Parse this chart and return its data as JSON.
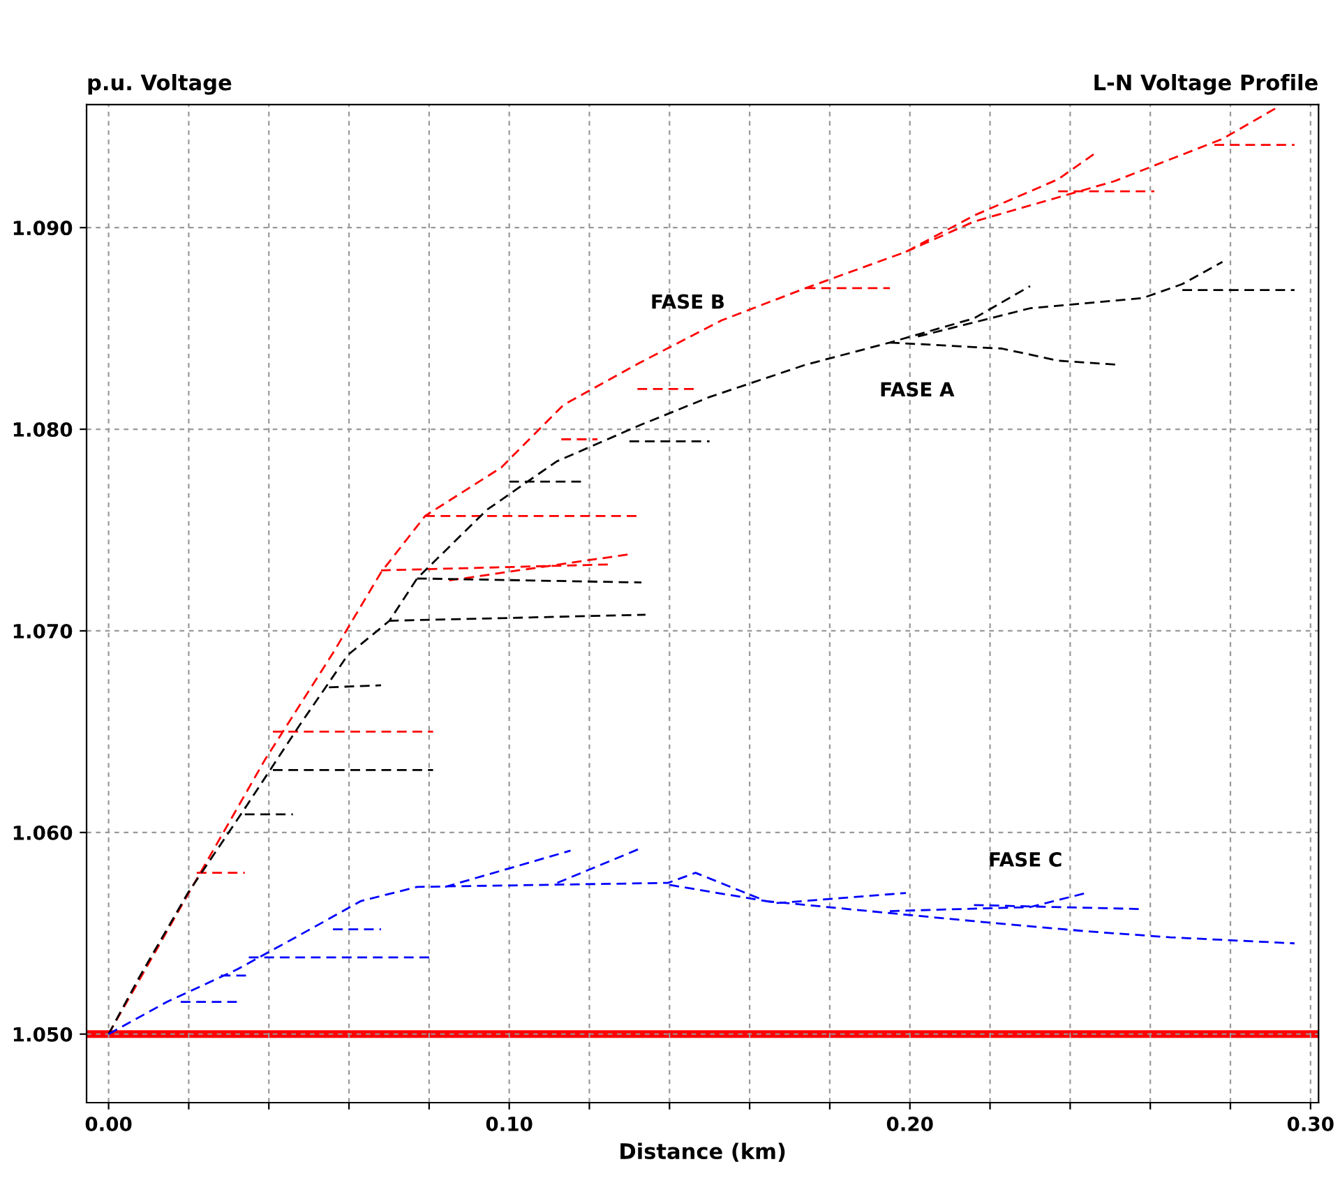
{
  "chart_data": {
    "type": "line",
    "title": "L-N Voltage Profile",
    "xlabel": "Distance (km)",
    "ylabel": "p.u. Voltage",
    "xlim": [
      -0.0055,
      0.302
    ],
    "ylim": [
      1.0466,
      1.0961
    ],
    "xticks": [
      {
        "value": 0,
        "label": "0.00"
      },
      {
        "value": 0.02,
        "label": null
      },
      {
        "value": 0.04,
        "label": null
      },
      {
        "value": 0.06,
        "label": null
      },
      {
        "value": 0.08,
        "label": null
      },
      {
        "value": 0.1,
        "label": "0.10"
      },
      {
        "value": 0.12,
        "label": null
      },
      {
        "value": 0.14,
        "label": null
      },
      {
        "value": 0.16,
        "label": null
      },
      {
        "value": 0.18,
        "label": null
      },
      {
        "value": 0.2,
        "label": "0.20"
      },
      {
        "value": 0.22,
        "label": null
      },
      {
        "value": 0.24,
        "label": null
      },
      {
        "value": 0.26,
        "label": null
      },
      {
        "value": 0.28,
        "label": null
      },
      {
        "value": 0.3,
        "label": "0.30"
      }
    ],
    "yticks": [
      {
        "value": 1.05,
        "label": "1.050"
      },
      {
        "value": 1.06,
        "label": "1.060"
      },
      {
        "value": 1.07,
        "label": "1.070"
      },
      {
        "value": 1.08,
        "label": "1.080"
      },
      {
        "value": 1.09,
        "label": "1.090"
      }
    ],
    "grid": true,
    "legend": false,
    "line_style": "dashed",
    "marker": "none",
    "ref_lines": [
      {
        "axis": "y",
        "value": 1.05,
        "color": "#ff0000",
        "line_style": "solid"
      }
    ],
    "series": [
      {
        "name": "FASE B",
        "color": "#ff0000",
        "x": [
          0,
          0.018,
          0.039,
          0.056,
          0.068,
          0.079,
          0.098,
          0.1135,
          0.1326,
          0.153,
          0.174,
          0.199,
          0.216,
          0.237,
          0.247,
          null,
          0.199,
          0.216,
          0.251,
          0.278,
          0.292,
          null,
          0.276,
          0.296,
          null,
          0.079,
          0.133,
          null,
          0.068,
          0.126,
          null,
          0.041,
          0.081,
          null,
          0.022,
          0.034,
          null,
          0.174,
          0.195,
          null,
          0.237,
          0.261,
          null,
          0.132,
          0.147,
          null,
          0.085,
          0.13,
          null,
          0.113,
          0.122
        ],
        "values": [
          1.05,
          1.0563,
          1.0636,
          1.0689,
          1.0729,
          1.0757,
          1.0781,
          1.0812,
          1.0833,
          1.0854,
          1.087,
          1.0888,
          1.0906,
          1.0924,
          1.0938,
          null,
          1.0888,
          1.0903,
          1.0923,
          1.0944,
          1.096,
          null,
          1.0941,
          1.0941,
          null,
          1.0757,
          1.0757,
          null,
          1.073,
          1.0733,
          null,
          1.065,
          1.065,
          null,
          1.058,
          1.058,
          null,
          1.087,
          1.087,
          null,
          1.0918,
          1.0918,
          null,
          1.082,
          1.082,
          null,
          1.0725,
          1.0738,
          null,
          1.0795,
          1.0795
        ]
      },
      {
        "name": "FASE A",
        "color": "#000000",
        "x": [
          0,
          0.0076,
          0.0198,
          0.0337,
          0.0476,
          0.0597,
          0.0701,
          0.077,
          0.0944,
          0.1118,
          0.1326,
          0.15,
          0.174,
          0.195,
          0.216,
          0.23,
          null,
          0.202,
          0.23,
          0.258,
          0.268,
          0.278,
          null,
          0.268,
          0.296,
          null,
          0.195,
          0.223,
          0.237,
          0.252,
          null,
          0.07,
          0.134,
          null,
          0.077,
          0.133,
          null,
          0.041,
          0.081,
          null,
          0.034,
          0.046,
          null,
          0.055,
          0.068,
          null,
          0.1,
          0.118,
          null,
          0.13,
          0.15
        ],
        "values": [
          1.05,
          1.0528,
          1.057,
          1.0611,
          1.0653,
          1.0688,
          1.0705,
          1.0726,
          1.076,
          1.0784,
          1.0802,
          1.0816,
          1.0832,
          1.0843,
          1.0855,
          1.0871,
          null,
          1.0846,
          1.086,
          1.0865,
          1.0872,
          1.0883,
          null,
          1.0869,
          1.0869,
          null,
          1.0843,
          1.084,
          1.0834,
          1.0832,
          null,
          1.0705,
          1.0708,
          null,
          1.0726,
          1.0724,
          null,
          1.0631,
          1.0631,
          null,
          1.0609,
          1.0609,
          null,
          1.0672,
          1.0673,
          null,
          1.0774,
          1.0774,
          null,
          1.0794,
          1.0794
        ]
      },
      {
        "name": "FASE C",
        "color": "#0000ff",
        "x": [
          0,
          0.0146,
          0.032,
          0.0476,
          0.063,
          0.069,
          0.077,
          0.1396,
          0.1465,
          0.164,
          0.195,
          0.216,
          0.244,
          0.265,
          0.296,
          null,
          0.084,
          0.1153,
          null,
          0.112,
          0.1326,
          null,
          0.14,
          0.167,
          0.199,
          null,
          0.195,
          0.23,
          0.244,
          null,
          0.216,
          0.258,
          null,
          0.035,
          0.081,
          null,
          0.056,
          0.068,
          null,
          0.028,
          0.035,
          null,
          0.018,
          0.032
        ],
        "values": [
          1.05,
          1.0516,
          1.0532,
          1.0549,
          1.0566,
          1.0569,
          1.0573,
          1.0575,
          1.058,
          1.0566,
          1.056,
          1.0556,
          1.0551,
          1.0548,
          1.0545,
          null,
          1.0573,
          1.0591,
          null,
          1.0575,
          1.0592,
          null,
          1.0574,
          1.0565,
          1.057,
          null,
          1.0561,
          1.0563,
          1.057,
          null,
          1.0564,
          1.0562,
          null,
          1.0538,
          1.0538,
          null,
          1.0552,
          1.0552,
          null,
          1.0529,
          1.0529,
          null,
          1.0516,
          1.0516
        ]
      }
    ]
  }
}
